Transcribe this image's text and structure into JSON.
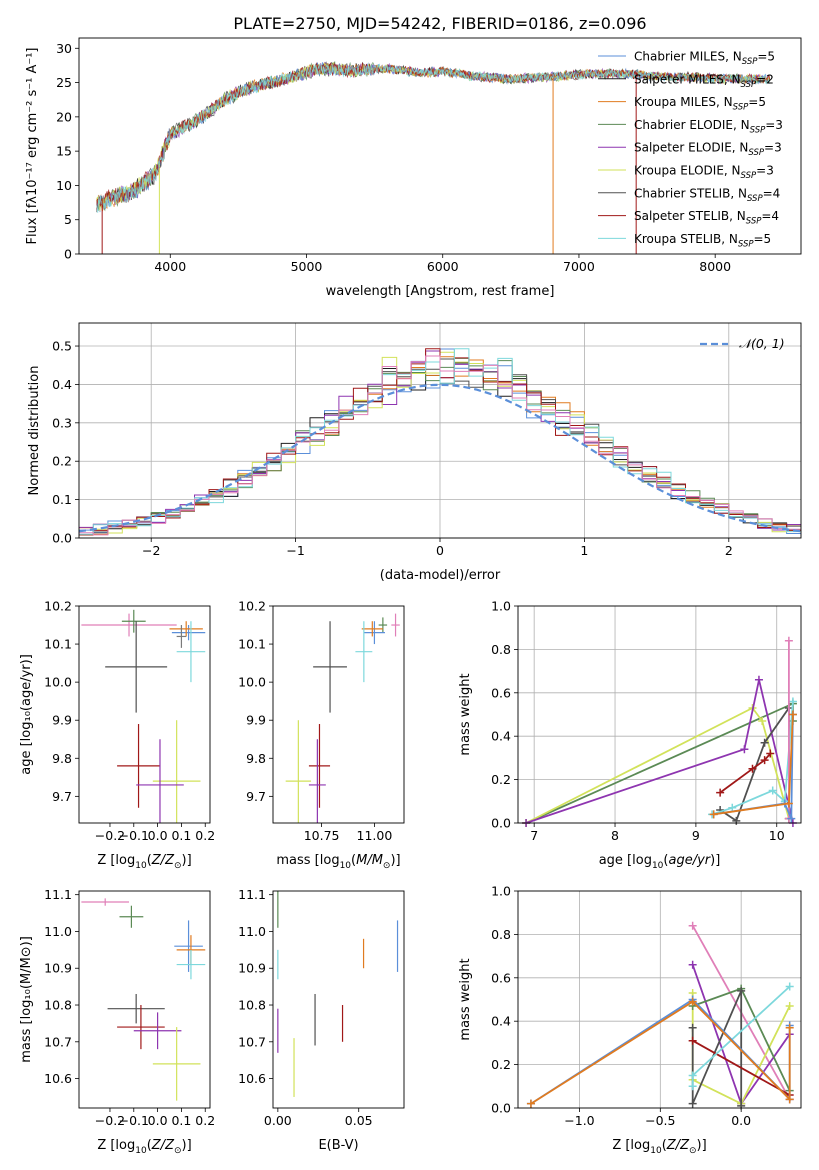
{
  "page_title": "PLATE=2750, MJD=54242, FIBERID=0186, z=0.096",
  "colors": {
    "chabrier_miles": "#5b8fd9",
    "salpeter_miles": "#1f1f1f",
    "kroupa_miles": "#e07b20",
    "chabrier_elodie": "#5b8a55",
    "salpeter_elodie": "#8e35b0",
    "kroupa_elodie": "#d2e25a",
    "chabrier_stelib": "#505050",
    "salpeter_stelib": "#a01818",
    "kroupa_stelib": "#7dd8dc",
    "pink": "#e07fb8",
    "gaussian": "#5b8fd9"
  },
  "chart_data": [
    {
      "id": "spectrum",
      "type": "line",
      "title": "PLATE=2750, MJD=54242, FIBERID=0186, z=0.096",
      "xlabel": "wavelength [Angstrom, rest frame]",
      "ylabel": "Flux [fλ10⁻¹⁷ erg cm⁻² s⁻¹ A⁻¹]",
      "xlim": [
        3330,
        8630
      ],
      "ylim": [
        0,
        31.5
      ],
      "xticks": [
        4000,
        5000,
        6000,
        7000,
        8000
      ],
      "yticks": [
        0,
        5,
        10,
        15,
        20,
        25,
        30
      ],
      "legend_location": "upper right",
      "continuum": {
        "x": [
          3460,
          3500,
          3550,
          3600,
          3650,
          3700,
          3750,
          3800,
          3850,
          3900,
          3950,
          4000,
          4100,
          4200,
          4300,
          4400,
          4500,
          4600,
          4700,
          4800,
          4900,
          5000,
          5100,
          5200,
          5300,
          5400,
          5500,
          5600,
          5700,
          5800,
          5900,
          6000,
          6100,
          6200,
          6300,
          6400,
          6500,
          6600,
          6700,
          6800,
          6900,
          7000,
          7100,
          7200,
          7300,
          7400,
          7500,
          7600,
          7700,
          7800,
          7900,
          8000,
          8100,
          8200,
          8300,
          8400
        ],
        "y": [
          7.2,
          7.6,
          8.0,
          8.3,
          8.6,
          9.0,
          9.4,
          10.2,
          11.0,
          12.0,
          15.0,
          17.5,
          18.5,
          19.5,
          21.0,
          22.5,
          23.5,
          24.3,
          24.8,
          25.3,
          25.8,
          26.5,
          27.0,
          27.0,
          26.8,
          26.8,
          27.0,
          27.0,
          26.8,
          26.5,
          26.5,
          26.6,
          26.4,
          26.0,
          25.8,
          25.7,
          25.5,
          25.6,
          25.8,
          25.8,
          26.0,
          26.2,
          26.3,
          26.3,
          26.3,
          26.2,
          26.0,
          25.9,
          25.8,
          25.8,
          25.7,
          25.6,
          25.6,
          25.5,
          25.5,
          25.5
        ]
      },
      "drop_lines": [
        {
          "x": 3500,
          "y": 8.0,
          "series": "Salpeter STELIB"
        },
        {
          "x": 3920,
          "y": 12.5,
          "series": "Kroupa ELODIE"
        },
        {
          "x": 6810,
          "y": 25.5,
          "series": "Kroupa MILES"
        },
        {
          "x": 7420,
          "y": 26.5,
          "series": "Salpeter STELIB"
        }
      ],
      "legend": [
        {
          "label": "Chabrier MILES, N_SSP=5",
          "name": "Chabrier MILES",
          "sub": "SSP",
          "tail": "=5",
          "color": "#5b8fd9"
        },
        {
          "label": "Salpeter MILES, N_SSP=2",
          "name": "Salpeter MILES",
          "sub": "SSP",
          "tail": "=2",
          "color": "#1f1f1f"
        },
        {
          "label": "Kroupa MILES, N_SSP=5",
          "name": "Kroupa MILES",
          "sub": "SSP",
          "tail": "=5",
          "color": "#e07b20"
        },
        {
          "label": "Chabrier ELODIE, N_SSP=3",
          "name": "Chabrier ELODIE",
          "sub": "SSP",
          "tail": "=3",
          "color": "#5b8a55"
        },
        {
          "label": "Salpeter ELODIE, N_SSP=3",
          "name": "Salpeter ELODIE",
          "sub": "SSP",
          "tail": "=3",
          "color": "#8e35b0"
        },
        {
          "label": "Kroupa ELODIE, N_SSP=3",
          "name": "Kroupa ELODIE",
          "sub": "SSP",
          "tail": "=3",
          "color": "#d2e25a"
        },
        {
          "label": "Chabrier STELIB, N_SSP=4",
          "name": "Chabrier STELIB",
          "sub": "SSP",
          "tail": "=4",
          "color": "#505050"
        },
        {
          "label": "Salpeter STELIB, N_SSP=4",
          "name": "Salpeter STELIB",
          "sub": "SSP",
          "tail": "=4",
          "color": "#a01818"
        },
        {
          "label": "Kroupa STELIB, N_SSP=5",
          "name": "Kroupa STELIB",
          "sub": "SSP",
          "tail": "=5",
          "color": "#7dd8dc"
        }
      ]
    },
    {
      "id": "residuals",
      "type": "histogram",
      "xlabel": "(data-model)/error",
      "ylabel": "Normed distribution",
      "xlim": [
        -2.5,
        2.5
      ],
      "ylim": [
        0,
        0.56
      ],
      "xticks": [
        -2,
        -1,
        0,
        1,
        2
      ],
      "yticks": [
        0.0,
        0.1,
        0.2,
        0.3,
        0.4,
        0.5
      ],
      "grid": true,
      "bin_width": 0.1,
      "gaussian_label": "𝒩(0, 1)",
      "gaussian": {
        "mean": 0,
        "sigma": 1
      },
      "hist_series_colors": [
        "#5b8fd9",
        "#1f1f1f",
        "#e07b20",
        "#5b8a55",
        "#8e35b0",
        "#d2e25a",
        "#505050",
        "#a01818",
        "#7dd8dc",
        "#e07fb8"
      ]
    },
    {
      "id": "age-vs-Z",
      "type": "errorbar",
      "xlabel": "Z [log₁₀(Z/Z⊙)]",
      "ylabel": "age  [log₁₀(age/yr)]",
      "xlim": [
        -0.33,
        0.22
      ],
      "ylim": [
        9.63,
        10.2
      ],
      "xticks": [
        -0.2,
        -0.1,
        0.0,
        0.1,
        0.2
      ],
      "yticks": [
        9.7,
        9.8,
        9.9,
        10.0,
        10.1,
        10.2
      ],
      "points": [
        {
          "x": -0.12,
          "y": 10.15,
          "xerr": 0.2,
          "yerr": 0.03,
          "color": "#e07fb8"
        },
        {
          "x": -0.1,
          "y": 10.16,
          "xerr": 0.05,
          "yerr": 0.03,
          "color": "#5b8a55"
        },
        {
          "x": 0.13,
          "y": 10.13,
          "xerr": 0.07,
          "yerr": 0.02,
          "color": "#5b8fd9"
        },
        {
          "x": 0.12,
          "y": 10.14,
          "xerr": 0.07,
          "yerr": 0.02,
          "color": "#e07b20"
        },
        {
          "x": 0.1,
          "y": 10.12,
          "xerr": 0.02,
          "yerr": 0.03,
          "color": "#7a7a7a"
        },
        {
          "x": 0.14,
          "y": 10.08,
          "xerr": 0.06,
          "yerr": 0.08,
          "color": "#7dd8dc"
        },
        {
          "x": -0.09,
          "y": 10.04,
          "xerr": 0.13,
          "yerr": 0.12,
          "color": "#505050"
        },
        {
          "x": -0.08,
          "y": 9.78,
          "xerr": 0.09,
          "yerr": 0.11,
          "color": "#a01818"
        },
        {
          "x": 0.08,
          "y": 9.74,
          "xerr": 0.1,
          "yerr": 0.16,
          "color": "#d2e25a"
        },
        {
          "x": 0.01,
          "y": 9.73,
          "xerr": 0.1,
          "yerr": 0.12,
          "color": "#8e35b0"
        }
      ]
    },
    {
      "id": "age-vs-mass",
      "type": "errorbar",
      "xlabel": "mass [log₁₀(M/M⊙)]",
      "ylabel": "",
      "xlim": [
        10.52,
        11.14
      ],
      "ylim": [
        9.63,
        10.2
      ],
      "xticks": [
        10.75,
        11.0
      ],
      "xticklabels": [
        "10.75",
        "11.00"
      ],
      "yticks": [
        9.7,
        9.8,
        9.9,
        10.0,
        10.1,
        10.2
      ],
      "points": [
        {
          "x": 11.1,
          "y": 10.15,
          "xerr": 0.02,
          "yerr": 0.03,
          "color": "#e07fb8"
        },
        {
          "x": 11.04,
          "y": 10.15,
          "xerr": 0.02,
          "yerr": 0.02,
          "color": "#5b8a55"
        },
        {
          "x": 11.0,
          "y": 10.13,
          "xerr": 0.05,
          "yerr": 0.03,
          "color": "#5b8fd9"
        },
        {
          "x": 10.99,
          "y": 10.14,
          "xerr": 0.05,
          "yerr": 0.02,
          "color": "#e07b20"
        },
        {
          "x": 10.95,
          "y": 10.08,
          "xerr": 0.04,
          "yerr": 0.08,
          "color": "#7dd8dc"
        },
        {
          "x": 10.79,
          "y": 10.04,
          "xerr": 0.08,
          "yerr": 0.12,
          "color": "#505050"
        },
        {
          "x": 10.74,
          "y": 9.78,
          "xerr": 0.05,
          "yerr": 0.11,
          "color": "#a01818"
        },
        {
          "x": 10.64,
          "y": 9.74,
          "xerr": 0.06,
          "yerr": 0.16,
          "color": "#d2e25a"
        },
        {
          "x": 10.73,
          "y": 9.73,
          "xerr": 0.04,
          "yerr": 0.12,
          "color": "#8e35b0"
        }
      ]
    },
    {
      "id": "mass-weight-vs-age",
      "type": "line",
      "xlabel": "age  [log₁₀(age/yr)]",
      "ylabel": "mass weight",
      "xlim": [
        6.8,
        10.3
      ],
      "ylim": [
        0,
        1
      ],
      "xticks": [
        7,
        8,
        9,
        10
      ],
      "yticks": [
        0.0,
        0.2,
        0.4,
        0.6,
        0.8,
        1.0
      ],
      "grid": true,
      "series": [
        {
          "color": "#5b8a55",
          "x": [
            6.9,
            10.2,
            10.2
          ],
          "y": [
            0.0,
            0.55,
            0.47
          ]
        },
        {
          "color": "#d2e25a",
          "x": [
            6.9,
            9.7,
            9.82,
            10.15
          ],
          "y": [
            0.0,
            0.53,
            0.47,
            0.02
          ]
        },
        {
          "color": "#8e35b0",
          "x": [
            6.9,
            9.6,
            9.78,
            10.2
          ],
          "y": [
            0.0,
            0.34,
            0.66,
            0.0
          ]
        },
        {
          "color": "#505050",
          "x": [
            9.3,
            9.5,
            9.85,
            10.15,
            10.15
          ],
          "y": [
            0.06,
            0.01,
            0.37,
            0.53,
            0.02
          ]
        },
        {
          "color": "#a01818",
          "x": [
            9.3,
            9.7,
            9.85,
            9.92
          ],
          "y": [
            0.14,
            0.25,
            0.29,
            0.32
          ]
        },
        {
          "color": "#7dd8dc",
          "x": [
            9.2,
            9.45,
            9.95,
            10.1,
            10.2
          ],
          "y": [
            0.04,
            0.07,
            0.15,
            0.1,
            0.56
          ]
        },
        {
          "color": "#e07fb8",
          "x": [
            10.15,
            10.15
          ],
          "y": [
            0.02,
            0.84
          ]
        },
        {
          "color": "#5b8fd9",
          "x": [
            9.22,
            10.1,
            10.18,
            10.2
          ],
          "y": [
            0.04,
            0.09,
            0.02,
            0.5
          ]
        },
        {
          "color": "#e07b20",
          "x": [
            9.22,
            10.15,
            10.2
          ],
          "y": [
            0.04,
            0.09,
            0.5
          ]
        }
      ]
    },
    {
      "id": "mass-vs-Z",
      "type": "errorbar",
      "xlabel": "Z [log₁₀(Z/Z⊙)]",
      "ylabel": "mass [log₁₀(M/M⊙)]",
      "xlim": [
        -0.33,
        0.22
      ],
      "ylim": [
        10.52,
        11.11
      ],
      "xticks": [
        -0.2,
        -0.1,
        0.0,
        0.1,
        0.2
      ],
      "yticks": [
        10.6,
        10.7,
        10.8,
        10.9,
        11.0,
        11.1
      ],
      "points": [
        {
          "x": -0.22,
          "y": 11.08,
          "xerr": 0.1,
          "yerr": 0.01,
          "color": "#e07fb8"
        },
        {
          "x": -0.11,
          "y": 11.04,
          "xerr": 0.05,
          "yerr": 0.03,
          "color": "#5b8a55"
        },
        {
          "x": 0.13,
          "y": 10.96,
          "xerr": 0.06,
          "yerr": 0.07,
          "color": "#5b8fd9"
        },
        {
          "x": 0.14,
          "y": 10.95,
          "xerr": 0.06,
          "yerr": 0.04,
          "color": "#e07b20"
        },
        {
          "x": 0.14,
          "y": 10.91,
          "xerr": 0.06,
          "yerr": 0.04,
          "color": "#7dd8dc"
        },
        {
          "x": -0.09,
          "y": 10.79,
          "xerr": 0.12,
          "yerr": 0.04,
          "color": "#505050"
        },
        {
          "x": -0.07,
          "y": 10.74,
          "xerr": 0.1,
          "yerr": 0.06,
          "color": "#a01818"
        },
        {
          "x": 0.0,
          "y": 10.73,
          "xerr": 0.1,
          "yerr": 0.05,
          "color": "#8e35b0"
        },
        {
          "x": 0.08,
          "y": 10.64,
          "xerr": 0.1,
          "yerr": 0.1,
          "color": "#d2e25a"
        }
      ]
    },
    {
      "id": "mass-vs-EBV",
      "type": "errorbar",
      "xlabel": "E(B-V)",
      "ylabel": "",
      "xlim": [
        -0.003,
        0.078
      ],
      "ylim": [
        10.52,
        11.11
      ],
      "xticks": [
        0.0,
        0.05
      ],
      "xticklabels": [
        "0.00",
        "0.05"
      ],
      "yticks": [
        10.6,
        10.7,
        10.8,
        10.9,
        11.0,
        11.1
      ],
      "points": [
        {
          "x": 0.0,
          "y": 11.06,
          "xerr": 0,
          "yerr": 0.05,
          "color": "#5b8a55"
        },
        {
          "x": 0.0,
          "y": 10.91,
          "xerr": 0,
          "yerr": 0.04,
          "color": "#7dd8dc"
        },
        {
          "x": 0.0,
          "y": 10.73,
          "xerr": 0,
          "yerr": 0.06,
          "color": "#8e35b0"
        },
        {
          "x": 0.01,
          "y": 10.63,
          "xerr": 0,
          "yerr": 0.08,
          "color": "#d2e25a"
        },
        {
          "x": 0.023,
          "y": 10.76,
          "xerr": 0,
          "yerr": 0.07,
          "color": "#505050"
        },
        {
          "x": 0.04,
          "y": 10.75,
          "xerr": 0,
          "yerr": 0.05,
          "color": "#a01818"
        },
        {
          "x": 0.053,
          "y": 10.94,
          "xerr": 0,
          "yerr": 0.04,
          "color": "#e07b20"
        },
        {
          "x": 0.074,
          "y": 10.96,
          "xerr": 0,
          "yerr": 0.07,
          "color": "#5b8fd9"
        }
      ]
    },
    {
      "id": "mass-weight-vs-Z",
      "type": "line",
      "xlabel": "Z [log₁₀(Z/Z⊙)]",
      "ylabel": "mass weight",
      "xlim": [
        -1.38,
        0.37
      ],
      "ylim": [
        0,
        1
      ],
      "xticks": [
        -1.0,
        -0.5,
        0.0
      ],
      "xticklabels": [
        "−1.0",
        "−0.5",
        "0.0"
      ],
      "yticks": [
        0.0,
        0.2,
        0.4,
        0.6,
        0.8,
        1.0
      ],
      "grid": true,
      "series": [
        {
          "color": "#e07fb8",
          "x": [
            -0.3,
            0.3
          ],
          "y": [
            0.84,
            0.04
          ]
        },
        {
          "color": "#8e35b0",
          "x": [
            -0.3,
            0.0,
            0.3
          ],
          "y": [
            0.66,
            0.02,
            0.34
          ]
        },
        {
          "color": "#d2e25a",
          "x": [
            -0.3,
            -0.3,
            0.0,
            0.3
          ],
          "y": [
            0.53,
            0.13,
            0.02,
            0.47
          ]
        },
        {
          "color": "#5b8a55",
          "x": [
            -0.3,
            0.0,
            0.3
          ],
          "y": [
            0.47,
            0.55,
            0.08
          ]
        },
        {
          "color": "#505050",
          "x": [
            -0.3,
            -0.3,
            0.0,
            0.0
          ],
          "y": [
            0.37,
            0.02,
            0.54,
            0.01
          ]
        },
        {
          "color": "#a01818",
          "x": [
            -0.3,
            0.3
          ],
          "y": [
            0.31,
            0.06
          ]
        },
        {
          "color": "#7dd8dc",
          "x": [
            -0.3,
            -0.3,
            0.3
          ],
          "y": [
            0.1,
            0.15,
            0.56
          ]
        },
        {
          "color": "#5b8fd9",
          "x": [
            -1.3,
            -0.3,
            0.3,
            0.3
          ],
          "y": [
            0.02,
            0.5,
            0.04,
            0.38
          ]
        },
        {
          "color": "#e07b20",
          "x": [
            -1.3,
            -0.3,
            0.3,
            0.3
          ],
          "y": [
            0.02,
            0.49,
            0.04,
            0.37
          ]
        }
      ]
    }
  ]
}
